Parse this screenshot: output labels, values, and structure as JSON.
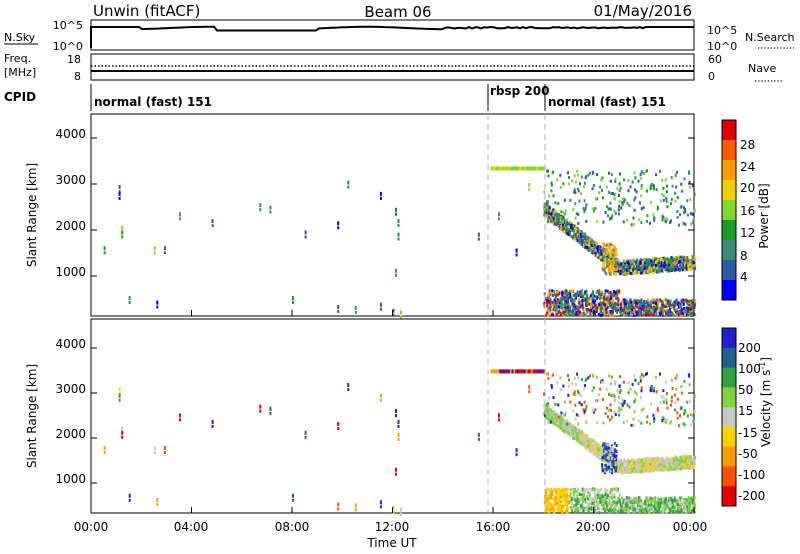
{
  "header": {
    "station": "Unwin (fitACF)",
    "beam": "Beam 06",
    "date": "01/May/2016"
  },
  "noise_panel": {
    "left_label": "N.Sky",
    "right_label": "N.Search",
    "left_ticks": [
      "10^5",
      "10^0"
    ],
    "right_ticks": [
      "10^5",
      "10^0"
    ]
  },
  "freq_panel": {
    "left_label_1": "Freq.",
    "left_label_2": "[MHz]",
    "right_label": "Nave",
    "left_ticks": [
      "18",
      "8"
    ],
    "right_ticks": [
      "60",
      "0"
    ]
  },
  "cpid": {
    "label": "CPID",
    "segments": [
      {
        "name": "normal (fast) 151",
        "start_hour": 0
      },
      {
        "name": "rbsp 200",
        "start_hour": 15.8
      },
      {
        "name": "normal (fast) 151",
        "start_hour": 18
      }
    ]
  },
  "colors": {
    "power": [
      "#0000ff",
      "#2c58a8",
      "#3c8c78",
      "#1a9c2a",
      "#7fd82a",
      "#f0d000",
      "#ff9a00",
      "#ff5a00",
      "#e00000"
    ],
    "velocity": [
      "#2020d0",
      "#206090",
      "#30a040",
      "#80d040",
      "#c8c8c0",
      "#ffd000",
      "#ff9a00",
      "#ff5000",
      "#e00000"
    ]
  },
  "chart_data": [
    {
      "type": "heatmap",
      "name": "power",
      "xlabel": "",
      "ylabel": "Slant Range [km]",
      "x_ticks": [
        "00:00",
        "04:00",
        "08:00",
        "12:00",
        "16:00",
        "20:00",
        "00:00"
      ],
      "xlim_hours": [
        0,
        24
      ],
      "ylim_km": [
        180,
        4600
      ],
      "y_ticks": [
        1000,
        2000,
        3000,
        4000
      ],
      "colorbar": {
        "label": "Power [dB]",
        "ticks": [
          4,
          8,
          12,
          16,
          20,
          24,
          28
        ],
        "range": [
          0,
          30
        ]
      },
      "mode_change_hours": [
        15.8,
        18.0
      ]
    },
    {
      "type": "heatmap",
      "name": "velocity",
      "xlabel": "Time UT",
      "ylabel": "Slant Range [km]",
      "x_ticks": [
        "00:00",
        "04:00",
        "08:00",
        "12:00",
        "16:00",
        "20:00",
        "00:00"
      ],
      "xlim_hours": [
        0,
        24
      ],
      "ylim_km": [
        180,
        4600
      ],
      "y_ticks": [
        1000,
        2000,
        3000,
        4000
      ],
      "colorbar": {
        "label": "Velocity [m s^-1]",
        "ticks": [
          "200",
          "100",
          "50",
          "15",
          "-15",
          "-50",
          "-100",
          "-200"
        ]
      },
      "mode_change_hours": [
        15.8,
        18.0
      ]
    }
  ]
}
